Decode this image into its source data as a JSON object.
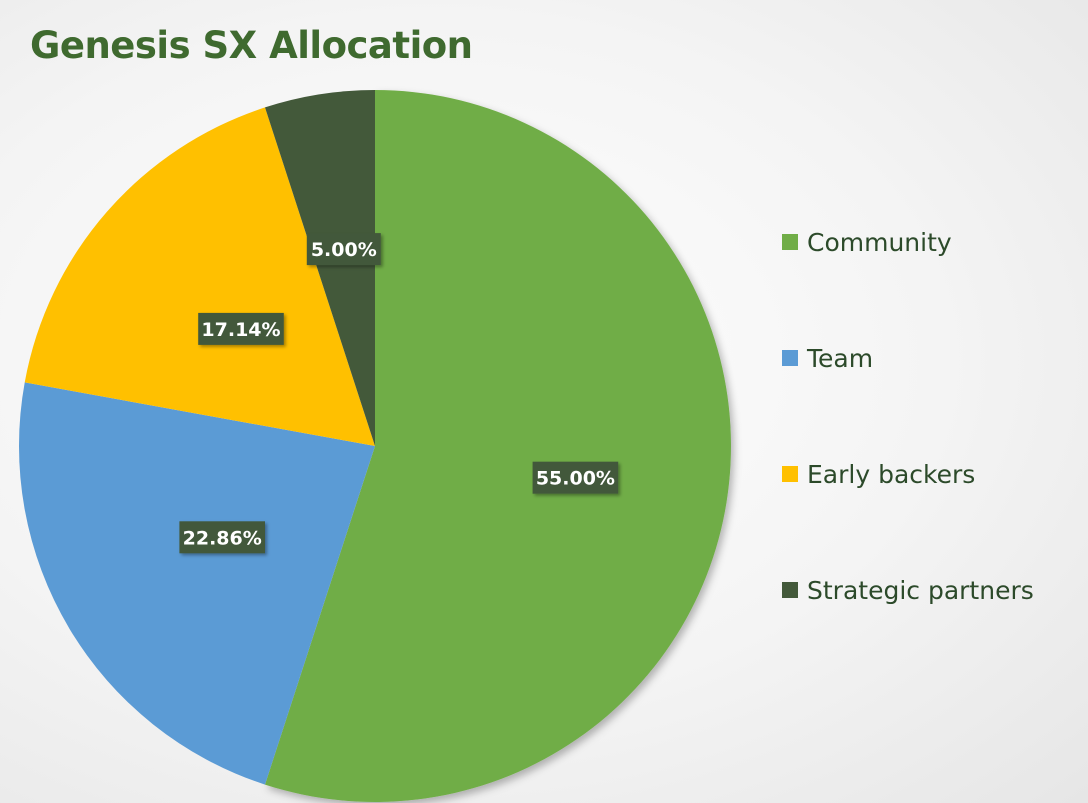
{
  "chart_data": {
    "type": "pie",
    "title": "Genesis SX Allocation",
    "categories": [
      "Community",
      "Team",
      "Early backers",
      "Strategic partners"
    ],
    "values": [
      55.0,
      22.86,
      17.14,
      5.0
    ],
    "data_labels": [
      "55.00%",
      "22.86%",
      "17.14%",
      "5.00%"
    ],
    "colors": [
      "#70ad47",
      "#5b9bd5",
      "#ffc000",
      "#43593a"
    ],
    "title_color": "#3f6a2f",
    "label_box_color": "#43593a",
    "start_angle": "12 o'clock",
    "direction": "clockwise",
    "legend_position": "right"
  }
}
